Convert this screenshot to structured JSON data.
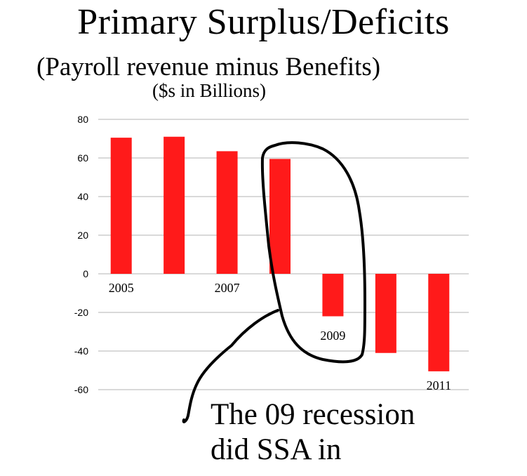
{
  "chart_data": {
    "type": "bar",
    "title": "Primary Surplus/Deficits",
    "subtitle": "(Payroll revenue minus Benefits)",
    "units": "($s in Billions)",
    "categories": [
      "2005",
      "",
      "2007",
      "",
      "2009",
      "",
      "2011"
    ],
    "values": [
      70.5,
      71,
      63.5,
      59.5,
      -22,
      -41,
      -50.5
    ],
    "ylim": [
      -60,
      80
    ],
    "yticks": [
      80,
      60,
      40,
      20,
      0,
      -20,
      -40,
      -60
    ],
    "grid": true,
    "bar_color": "#ff1a1a",
    "annotation_lines": [
      "The 09 recession",
      "did SSA in"
    ]
  }
}
